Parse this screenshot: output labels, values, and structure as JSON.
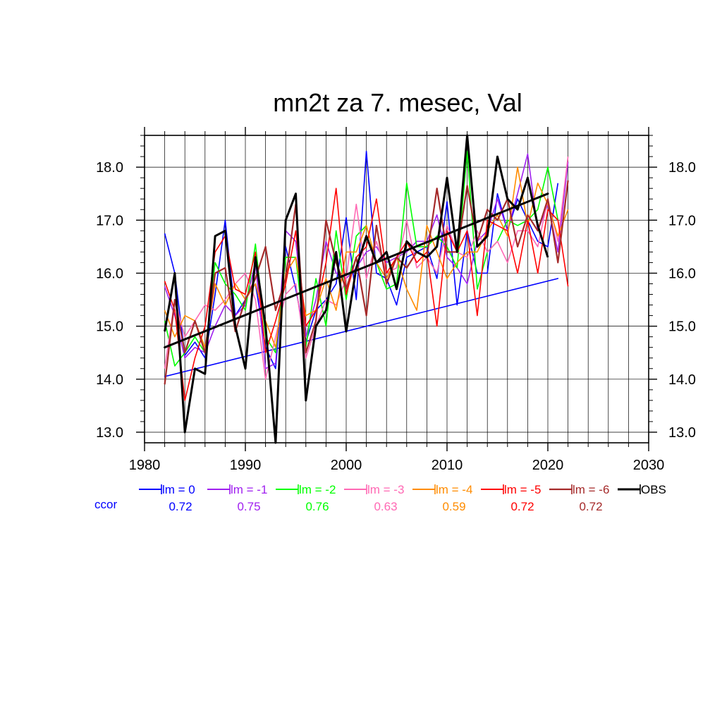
{
  "chart_data": {
    "type": "line",
    "title": "mn2t za 7. mesec, Val",
    "xlim": [
      1980,
      2030
    ],
    "ylim": [
      12.8,
      18.6
    ],
    "x_ticks": [
      1980,
      1990,
      2000,
      2010,
      2020,
      2030
    ],
    "y_ticks": [
      "13.0",
      "14.0",
      "15.0",
      "16.0",
      "17.0",
      "18.0"
    ],
    "grid": true,
    "legend_placement": "bottom",
    "ccor_label": "ccor",
    "ccor_color": "#0000ff",
    "series": [
      {
        "name": "lm = 0",
        "color": "#0000ff",
        "ccor": "0.72",
        "width": 1.6,
        "x": [
          1982,
          1983,
          1984,
          1985,
          1986,
          1987,
          1988,
          1989,
          1990,
          1991,
          1992,
          1993,
          1994,
          1995,
          1996,
          1997,
          1998,
          1999,
          2000,
          2001,
          2002,
          2003,
          2004,
          2005,
          2006,
          2007,
          2008,
          2009,
          2010,
          2011,
          2012,
          2013,
          2014,
          2015,
          2016,
          2017,
          2018,
          2019,
          2020,
          2021
        ],
        "values": [
          16.75,
          16.0,
          14.45,
          14.7,
          14.4,
          15.6,
          17.0,
          15.2,
          15.5,
          15.8,
          14.6,
          14.2,
          16.5,
          15.7,
          14.7,
          15.3,
          15.5,
          15.8,
          17.05,
          15.5,
          18.3,
          16.0,
          15.9,
          15.4,
          16.3,
          16.4,
          16.5,
          15.9,
          17.35,
          15.4,
          16.8,
          16.0,
          16.0,
          17.5,
          16.8,
          17.4,
          17.0,
          16.6,
          16.5,
          17.7
        ],
        "trend": [
          [
            1982,
            14.05
          ],
          [
            2021,
            15.9
          ]
        ]
      },
      {
        "name": "lm = -1",
        "color": "#a020f0",
        "ccor": "0.75",
        "width": 1.6,
        "x": [
          1982,
          1983,
          1984,
          1985,
          1986,
          1987,
          1988,
          1989,
          1990,
          1991,
          1992,
          1993,
          1994,
          1995,
          1996,
          1997,
          1998,
          1999,
          2000,
          2001,
          2002,
          2003,
          2004,
          2005,
          2006,
          2007,
          2008,
          2009,
          2010,
          2011,
          2012,
          2013,
          2014,
          2015,
          2016,
          2017,
          2018,
          2019,
          2020,
          2021,
          2022
        ],
        "values": [
          15.75,
          15.2,
          14.4,
          14.6,
          14.5,
          15.0,
          15.4,
          15.2,
          15.4,
          16.2,
          14.2,
          14.3,
          16.8,
          16.6,
          14.8,
          15.5,
          16.6,
          16.0,
          15.9,
          16.1,
          16.4,
          16.5,
          16.2,
          16.3,
          16.4,
          16.6,
          16.6,
          17.1,
          16.3,
          16.1,
          15.8,
          16.6,
          16.8,
          17.4,
          16.8,
          17.5,
          18.25,
          16.8,
          17.3,
          16.4,
          18.1
        ]
      },
      {
        "name": "lm = -2",
        "color": "#00ff00",
        "ccor": "0.76",
        "width": 1.6,
        "x": [
          1982,
          1983,
          1984,
          1985,
          1986,
          1987,
          1988,
          1989,
          1990,
          1991,
          1992,
          1993,
          1994,
          1995,
          1996,
          1997,
          1998,
          1999,
          2000,
          2001,
          2002,
          2003,
          2004,
          2005,
          2006,
          2007,
          2008,
          2009,
          2010,
          2011,
          2012,
          2013,
          2014,
          2015,
          2016,
          2017,
          2018,
          2019,
          2020,
          2021
        ],
        "values": [
          15.1,
          14.25,
          14.5,
          14.8,
          14.5,
          16.2,
          15.8,
          15.6,
          15.3,
          16.55,
          14.8,
          14.5,
          16.3,
          16.3,
          14.6,
          15.9,
          15.0,
          16.8,
          15.5,
          16.7,
          16.9,
          16.2,
          15.7,
          15.8,
          17.7,
          16.5,
          16.5,
          16.7,
          16.5,
          16.1,
          18.3,
          15.7,
          16.4,
          16.6,
          17.0,
          16.9,
          17.0,
          17.2,
          18.0,
          17.0
        ]
      },
      {
        "name": "lm = -3",
        "color": "#ff69b4",
        "ccor": "0.63",
        "width": 1.6,
        "x": [
          1982,
          1983,
          1984,
          1985,
          1986,
          1987,
          1988,
          1989,
          1990,
          1991,
          1992,
          1993,
          1994,
          1995,
          1996,
          1997,
          1998,
          1999,
          2000,
          2001,
          2002,
          2003,
          2004,
          2005,
          2006,
          2007,
          2008,
          2009,
          2010,
          2011,
          2012,
          2013,
          2014,
          2015,
          2016,
          2017,
          2018,
          2019,
          2020,
          2021,
          2022
        ],
        "values": [
          14.2,
          15.5,
          14.8,
          15.1,
          15.4,
          15.3,
          15.5,
          15.8,
          16.0,
          15.5,
          14.0,
          14.8,
          15.6,
          15.8,
          14.4,
          15.0,
          15.5,
          15.4,
          15.9,
          17.3,
          15.9,
          16.6,
          16.0,
          16.1,
          17.0,
          16.1,
          16.3,
          16.0,
          16.9,
          16.4,
          16.3,
          16.8,
          16.4,
          16.6,
          16.2,
          16.8,
          16.8,
          16.5,
          17.4,
          16.6,
          18.2
        ]
      },
      {
        "name": "lm = -4",
        "color": "#ff8c00",
        "ccor": "0.59",
        "width": 1.6,
        "x": [
          1982,
          1983,
          1984,
          1985,
          1986,
          1987,
          1988,
          1989,
          1990,
          1991,
          1992,
          1993,
          1994,
          1995,
          1996,
          1997,
          1998,
          1999,
          2000,
          2001,
          2002,
          2003,
          2004,
          2005,
          2006,
          2007,
          2008,
          2009,
          2010,
          2011,
          2012,
          2013,
          2014,
          2015,
          2016,
          2017,
          2018,
          2019,
          2020,
          2021,
          2022
        ],
        "values": [
          15.3,
          14.8,
          15.2,
          15.1,
          14.6,
          15.8,
          15.4,
          15.8,
          15.5,
          15.8,
          15.1,
          14.6,
          16.0,
          16.3,
          15.2,
          15.3,
          15.9,
          15.3,
          16.4,
          16.4,
          16.9,
          16.2,
          15.9,
          16.3,
          15.7,
          15.3,
          16.9,
          16.4,
          15.9,
          16.2,
          16.4,
          16.4,
          16.8,
          17.1,
          16.7,
          18.0,
          16.9,
          17.7,
          17.3,
          16.7,
          17.2
        ]
      },
      {
        "name": "lm = -5",
        "color": "#ff0000",
        "ccor": "0.72",
        "width": 1.6,
        "x": [
          1982,
          1983,
          1984,
          1985,
          1986,
          1987,
          1988,
          1989,
          1990,
          1991,
          1992,
          1993,
          1994,
          1995,
          1996,
          1997,
          1998,
          1999,
          2000,
          2001,
          2002,
          2003,
          2004,
          2005,
          2006,
          2007,
          2008,
          2009,
          2010,
          2011,
          2012,
          2013,
          2014,
          2015,
          2016,
          2017,
          2018,
          2019,
          2020,
          2021,
          2022
        ],
        "values": [
          15.85,
          15.3,
          13.6,
          14.4,
          15.0,
          16.4,
          16.7,
          15.7,
          15.6,
          16.4,
          14.5,
          15.1,
          15.8,
          16.8,
          15.0,
          15.3,
          16.2,
          17.6,
          15.6,
          16.3,
          16.5,
          17.4,
          16.0,
          16.3,
          16.6,
          16.2,
          16.4,
          15.0,
          16.8,
          16.4,
          16.8,
          15.2,
          17.0,
          16.9,
          16.8,
          16.0,
          17.0,
          16.0,
          17.2,
          17.0,
          15.75
        ]
      },
      {
        "name": "lm = -6",
        "color": "#a52a2a",
        "ccor": "0.72",
        "width": 2.2,
        "x": [
          1982,
          1983,
          1984,
          1985,
          1986,
          1987,
          1988,
          1989,
          1990,
          1991,
          1992,
          1993,
          1994,
          1995,
          1996,
          1997,
          1998,
          1999,
          2000,
          2001,
          2002,
          2003,
          2004,
          2005,
          2006,
          2007,
          2008,
          2009,
          2010,
          2011,
          2012,
          2013,
          2014,
          2015,
          2016,
          2017,
          2018,
          2019,
          2020,
          2021,
          2022
        ],
        "values": [
          13.9,
          15.5,
          14.5,
          15.1,
          14.5,
          16.0,
          16.1,
          14.9,
          15.5,
          15.9,
          16.5,
          15.3,
          15.9,
          17.3,
          14.5,
          15.1,
          17.0,
          16.2,
          15.7,
          16.3,
          15.2,
          16.9,
          15.8,
          16.3,
          16.1,
          16.4,
          16.3,
          17.6,
          16.4,
          16.4,
          17.65,
          16.6,
          17.2,
          17.0,
          17.4,
          16.5,
          17.1,
          16.8,
          17.4,
          16.2,
          17.75
        ]
      },
      {
        "name": "OBS",
        "color": "#000000",
        "ccor": "",
        "width": 3.0,
        "x": [
          1982,
          1983,
          1984,
          1985,
          1986,
          1987,
          1988,
          1989,
          1990,
          1991,
          1992,
          1993,
          1994,
          1995,
          1996,
          1997,
          1998,
          1999,
          2000,
          2001,
          2002,
          2003,
          2004,
          2005,
          2006,
          2007,
          2008,
          2009,
          2010,
          2011,
          2012,
          2013,
          2014,
          2015,
          2016,
          2017,
          2018,
          2019,
          2020
        ],
        "values": [
          14.9,
          16.0,
          13.0,
          14.2,
          14.1,
          16.7,
          16.8,
          15.0,
          14.2,
          16.3,
          15.0,
          12.8,
          17.0,
          17.5,
          13.6,
          15.0,
          15.3,
          16.4,
          14.9,
          16.1,
          16.7,
          16.2,
          16.4,
          15.7,
          16.6,
          16.4,
          16.3,
          16.5,
          17.8,
          16.4,
          18.6,
          16.5,
          16.7,
          18.2,
          17.4,
          17.2,
          17.8,
          16.9,
          16.3
        ],
        "trend": [
          [
            1982,
            14.6
          ],
          [
            2020,
            17.5
          ]
        ]
      }
    ]
  }
}
